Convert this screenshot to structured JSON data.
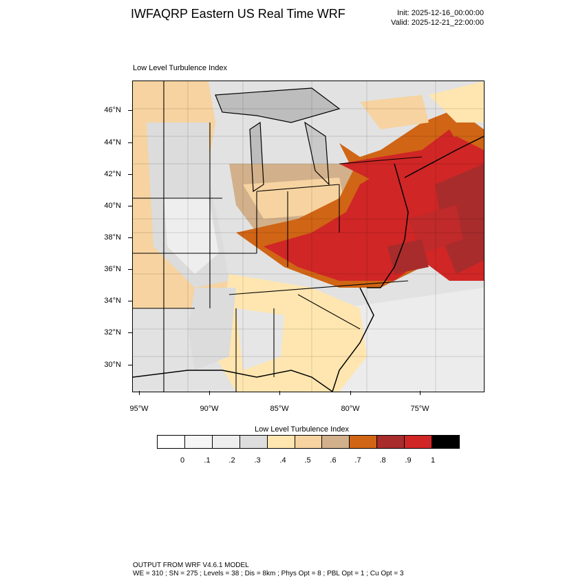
{
  "header": {
    "title": "IWFAQRP Eastern US Real Time WRF",
    "init": "Init: 2025-12-16_00:00:00",
    "valid": "Valid: 2025-12-21_22:00:00",
    "subtitle": "Low Level Turbulence Index"
  },
  "map": {
    "lat_labels": [
      "46°N",
      "44°N",
      "42°N",
      "40°N",
      "38°N",
      "36°N",
      "34°N",
      "32°N",
      "30°N"
    ],
    "lon_labels": [
      "95°W",
      "90°W",
      "85°W",
      "80°W",
      "75°W"
    ]
  },
  "colorbar": {
    "title": "Low Level Turbulence Index",
    "colors": [
      "#ffffff",
      "#f6f6f6",
      "#eeeeee",
      "#dddddd",
      "#ffe6b0",
      "#f6d3a0",
      "#d1b08b",
      "#d06515",
      "#a82c2c",
      "#d02626",
      "#000000"
    ],
    "labels": [
      "0",
      ".1",
      ".2",
      ".3",
      ".4",
      ".5",
      ".6",
      ".7",
      ".8",
      ".9",
      "1"
    ]
  },
  "footer": {
    "line1": "OUTPUT FROM WRF V4.6.1 MODEL",
    "line2": "WE = 310 ; SN = 275 ; Levels = 38 ; Dis = 8km ; Phys Opt = 8 ; PBL Opt = 1 ; Cu Opt = 3"
  }
}
